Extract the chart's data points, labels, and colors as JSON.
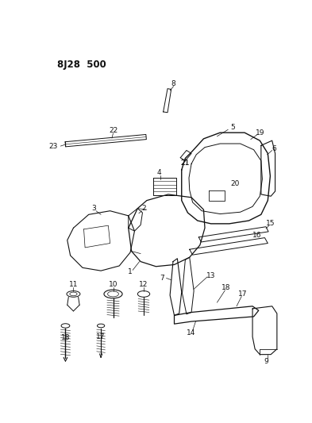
{
  "title": "8J28 500",
  "bg_color": "#ffffff",
  "fg_color": "#111111",
  "title_fontsize": 8.5,
  "label_fontsize": 6.5,
  "fig_width": 3.93,
  "fig_height": 5.33,
  "dpi": 100
}
